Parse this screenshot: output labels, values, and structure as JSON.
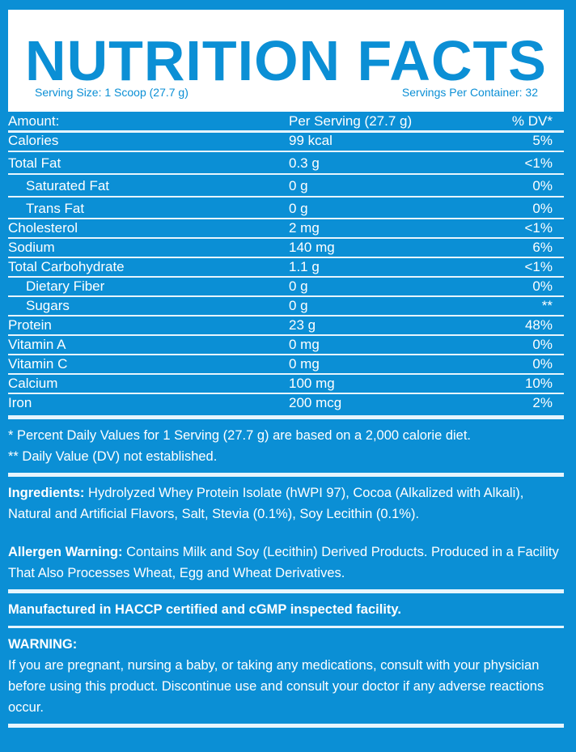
{
  "header": {
    "title": "NUTRITION FACTS",
    "serving_size": "Serving Size: 1 Scoop (27.7 g)",
    "servings_per_container": "Servings Per Container: 32"
  },
  "table": {
    "columns": [
      "Amount:",
      "Per Serving (27.7 g)",
      "% DV*"
    ],
    "rows": [
      {
        "name": "Calories",
        "amount": "99 kcal",
        "dv": "5%"
      },
      {
        "name": "Total Fat",
        "amount": "0.3 g",
        "dv": "<1%"
      },
      {
        "name": "Saturated Fat",
        "amount": "0 g",
        "dv": "0%",
        "indent": true
      },
      {
        "name": "Trans Fat",
        "amount": "0 g",
        "dv": "0%",
        "indent": true
      },
      {
        "name": "Cholesterol",
        "amount": "2 mg",
        "dv": "<1%"
      },
      {
        "name": "Sodium",
        "amount": "140 mg",
        "dv": "6%"
      },
      {
        "name": "Total Carbohydrate",
        "amount": "1.1 g",
        "dv": "<1%"
      },
      {
        "name": "Dietary Fiber",
        "amount": "0 g",
        "dv": "0%",
        "indent": true
      },
      {
        "name": "Sugars",
        "amount": "0 g",
        "dv": "**",
        "indent": true
      },
      {
        "name": "Protein",
        "amount": "23 g",
        "dv": "48%"
      },
      {
        "name": "Vitamin A",
        "amount": "0 mg",
        "dv": "0%"
      },
      {
        "name": "Vitamin C",
        "amount": "0 mg",
        "dv": "0%"
      },
      {
        "name": "Calcium",
        "amount": "100 mg",
        "dv": "10%"
      },
      {
        "name": "Iron",
        "amount": "200 mcg",
        "dv": "2%"
      }
    ]
  },
  "notes": {
    "dv_note": "* Percent Daily Values for 1 Serving (27.7 g) are based on a 2,000 calorie diet.",
    "dv_not_established": "** Daily Value (DV) not established."
  },
  "ingredients": {
    "label": "Ingredients:",
    "text": " Hydrolyzed Whey Protein Isolate (hWPI 97), Cocoa (Alkalized with Alkali), Natural and Artificial Flavors, Salt, Stevia (0.1%), Soy Lecithin (0.1%)."
  },
  "allergen": {
    "label": "Allergen Warning:",
    "text": " Contains Milk and Soy (Lecithin) Derived Products. Produced in a Facility That Also Processes Wheat, Egg and Wheat Derivatives."
  },
  "manufactured": "Manufactured in HACCP certified and cGMP inspected facility.",
  "warning": {
    "label": "WARNING:",
    "text": "If you are pregnant, nursing a baby, or taking any medications, consult with your physician before using this product. Discontinue use and consult your doctor if any adverse reactions occur."
  },
  "colors": {
    "background": "#0b8fd5",
    "header_bg": "#ffffff"
  }
}
